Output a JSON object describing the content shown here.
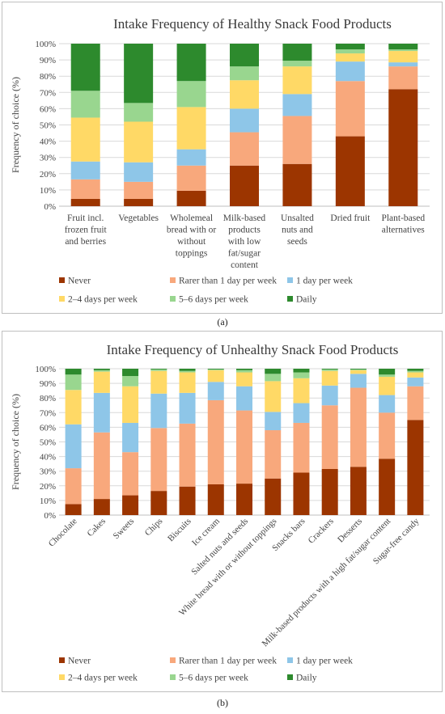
{
  "legend": [
    "Never",
    "Rarer than 1 day per week",
    "1 day per week",
    "2–4 days per week",
    "5–6 days per week",
    "Daily"
  ],
  "colors": [
    "#9c3500",
    "#f8a87c",
    "#8ec6e8",
    "#ffd966",
    "#99d68f",
    "#2d8a2d"
  ],
  "y_ticks": [
    "0%",
    "10%",
    "20%",
    "30%",
    "40%",
    "50%",
    "60%",
    "70%",
    "80%",
    "90%",
    "100%"
  ],
  "caption_a": "(a)",
  "caption_b": "(b)",
  "chart_data": [
    {
      "type": "bar",
      "stacked": true,
      "title": "Intake Frequency of Healthy Snack Food Products",
      "ylabel": "Frequency of choice (%)",
      "ylim": [
        0,
        100
      ],
      "categories": [
        "Fruit incl. frozen fruit and berries",
        "Vegetables",
        "Wholemeal bread with or without toppings",
        "Milk-based products with low fat/sugar content",
        "Unsalted nuts and seeds",
        "Dried fruit",
        "Plant-based alternatives"
      ],
      "series": [
        {
          "name": "Never",
          "values": [
            4.5,
            4.5,
            9.5,
            25,
            26,
            43,
            72
          ]
        },
        {
          "name": "Rarer than 1 day per week",
          "values": [
            12,
            10.5,
            15.5,
            20.5,
            29.5,
            34,
            14
          ]
        },
        {
          "name": "1 day per week",
          "values": [
            11,
            12,
            10,
            14.5,
            13.5,
            12,
            2.5
          ]
        },
        {
          "name": "2–4 days per week",
          "values": [
            27,
            25,
            26,
            17.5,
            17,
            5,
            7
          ]
        },
        {
          "name": "5–6 days per week",
          "values": [
            16.5,
            11.5,
            16,
            8.5,
            3.5,
            2.5,
            1
          ]
        },
        {
          "name": "Daily",
          "values": [
            29,
            36.5,
            23,
            14,
            10.5,
            3.5,
            3.5
          ]
        }
      ]
    },
    {
      "type": "bar",
      "stacked": true,
      "title": "Intake Frequency of Unhealthy Snack Food Products",
      "ylabel": "Frequency of choice (%)",
      "ylim": [
        0,
        100
      ],
      "categories": [
        "Chocolate",
        "Cakes",
        "Sweets",
        "Chips",
        "Biscuits",
        "Ice cream",
        "Salted nuts and seeds",
        "White bread with or without toppings",
        "Snacks bars",
        "Crackers",
        "Desserts",
        "Milk-based products with a high fat/sugar content",
        "Sugar-free candy"
      ],
      "series": [
        {
          "name": "Never",
          "values": [
            7.5,
            11,
            13.5,
            16.5,
            19.5,
            21,
            21.5,
            25,
            29,
            31.5,
            33,
            38.5,
            65
          ]
        },
        {
          "name": "Rarer than 1 day per week",
          "values": [
            24.5,
            45.5,
            29.5,
            43,
            43,
            57.5,
            50,
            33,
            34,
            43.5,
            54,
            31.5,
            23
          ]
        },
        {
          "name": "1 day per week",
          "values": [
            30,
            27,
            20,
            23.5,
            21,
            12.5,
            16.5,
            12.5,
            13.5,
            13.5,
            9.5,
            12,
            6
          ]
        },
        {
          "name": "2–4 days per week",
          "values": [
            23.5,
            14.5,
            25,
            15.5,
            14,
            8,
            9.5,
            21,
            17,
            10,
            2.5,
            12.5,
            3.5
          ]
        },
        {
          "name": "5–6 days per week",
          "values": [
            10.5,
            1,
            7,
            1,
            1,
            0.5,
            1.5,
            5,
            4,
            1,
            0.5,
            1.5,
            1
          ]
        },
        {
          "name": "Daily",
          "values": [
            4,
            1,
            5,
            0.5,
            1.5,
            0.5,
            1,
            3.5,
            2.5,
            0.5,
            0.5,
            4,
            1.5
          ]
        }
      ]
    }
  ]
}
